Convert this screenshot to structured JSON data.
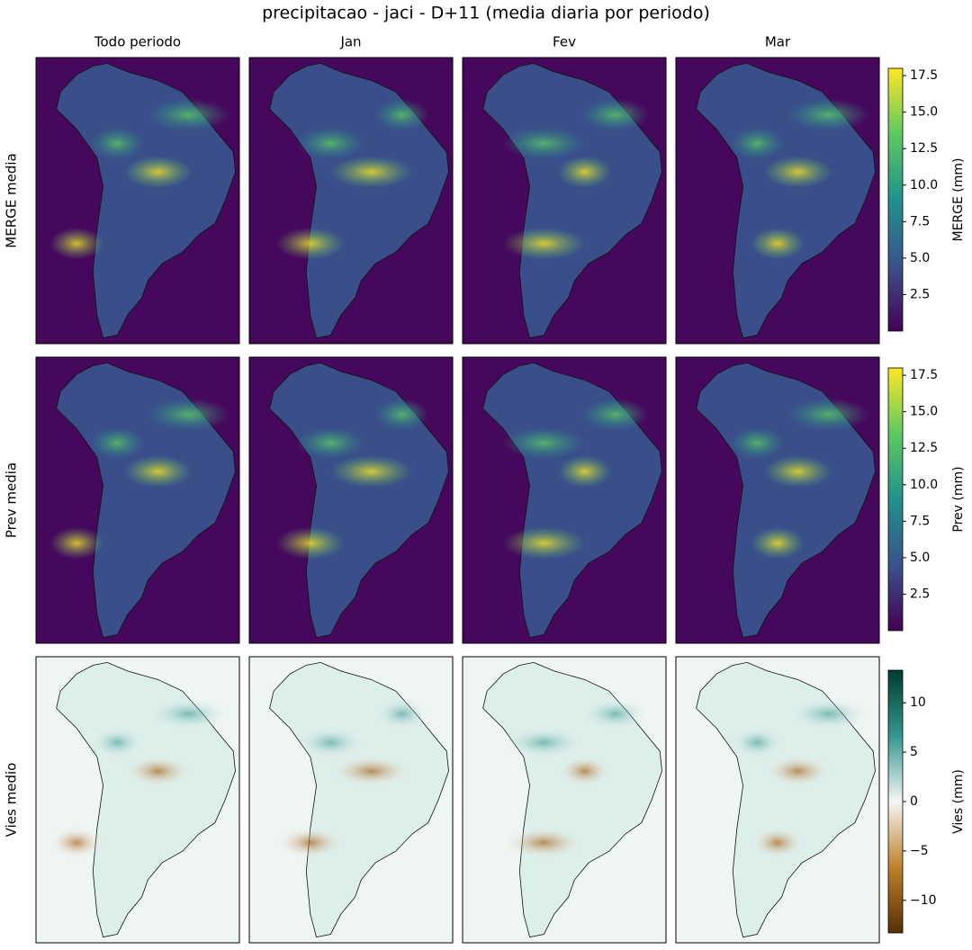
{
  "title": "precipitacao - jaci - D+11 (media diaria por periodo)",
  "columns": [
    "Todo periodo",
    "Jan",
    "Fev",
    "Mar"
  ],
  "rows": [
    {
      "label": "MERGE media",
      "colorbar": {
        "label": "MERGE (mm)",
        "colormap": "viridis",
        "lim": [
          0,
          18
        ],
        "ticks": [
          2.5,
          {
            "value": 5,
            "label": "5.0"
          },
          7.5,
          {
            "value": 10,
            "label": "10.0"
          },
          12.5,
          {
            "value": 15,
            "label": "15.0"
          },
          17.5
        ]
      }
    },
    {
      "label": "Prev media",
      "colorbar": {
        "label": "Prev (mm)",
        "colormap": "viridis",
        "lim": [
          0,
          18
        ],
        "ticks": [
          2.5,
          {
            "value": 5,
            "label": "5.0"
          },
          7.5,
          {
            "value": 10,
            "label": "10.0"
          },
          12.5,
          {
            "value": 15,
            "label": "15.0"
          },
          17.5
        ]
      }
    },
    {
      "label": "Vies medio",
      "colorbar": {
        "label": "Vies (mm)",
        "colormap": "BrBG",
        "lim": [
          -13.3,
          13.3
        ],
        "ticks": [
          {
            "value": -10,
            "label": "−10"
          },
          {
            "value": -5,
            "label": "−5"
          },
          0,
          5,
          10
        ]
      }
    }
  ]
}
